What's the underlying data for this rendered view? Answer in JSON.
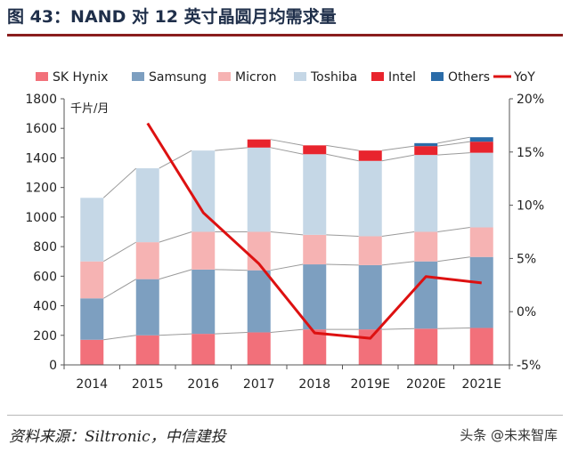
{
  "title": "图 43：NAND 对 12 英寸晶圆月均需求量",
  "source": "资料来源：Siltronic，中信建投",
  "watermark": "头条 @未来智库",
  "chart_data": {
    "type": "bar",
    "stacked": true,
    "unit_label": "千片/月",
    "categories": [
      "2014",
      "2015",
      "2016",
      "2017",
      "2018",
      "2019E",
      "2020E",
      "2021E"
    ],
    "y_left": {
      "min": 0,
      "max": 1800,
      "step": 200
    },
    "y_right": {
      "min": -5,
      "max": 20,
      "step": 5,
      "suffix": "%"
    },
    "series": [
      {
        "name": "SK Hynix",
        "color": "#f2707a",
        "values": [
          170,
          200,
          210,
          220,
          240,
          240,
          245,
          250
        ]
      },
      {
        "name": "Samsung",
        "color": "#7d9fc0",
        "values": [
          280,
          380,
          435,
          420,
          440,
          435,
          455,
          480
        ]
      },
      {
        "name": "Micron",
        "color": "#f6b3b3",
        "values": [
          250,
          250,
          255,
          260,
          200,
          195,
          200,
          200
        ]
      },
      {
        "name": "Toshiba",
        "color": "#c5d7e6",
        "values": [
          430,
          500,
          550,
          570,
          545,
          510,
          520,
          505
        ]
      },
      {
        "name": "Intel",
        "color": "#e8242d",
        "values": [
          0,
          0,
          0,
          55,
          60,
          70,
          60,
          75
        ]
      },
      {
        "name": "Others",
        "color": "#2b6ca8",
        "values": [
          0,
          0,
          0,
          0,
          0,
          0,
          20,
          30
        ]
      }
    ],
    "line": {
      "name": "YoY",
      "color": "#dd1111",
      "axis": "right",
      "values": [
        null,
        17.7,
        9.3,
        4.5,
        -2.0,
        -2.5,
        3.3,
        2.7
      ]
    }
  }
}
